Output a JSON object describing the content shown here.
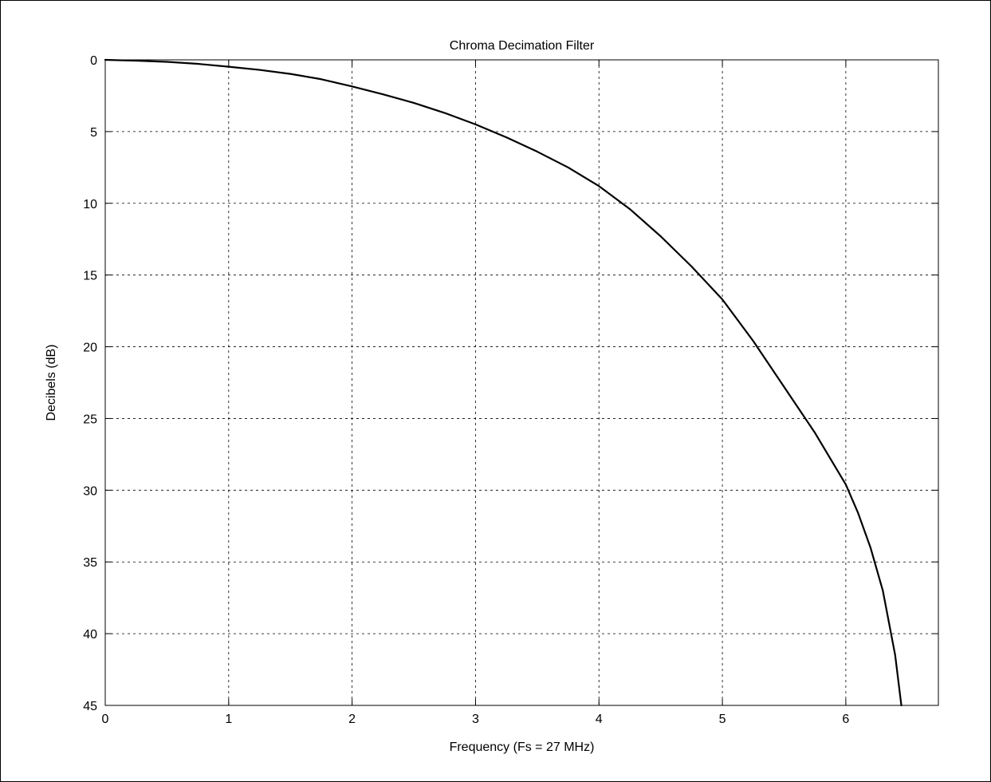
{
  "chart_data": {
    "type": "line",
    "title": "Chroma Decimation Filter",
    "xlabel": "Frequency (Fs = 27 MHz)",
    "ylabel": "Decibels (dB)",
    "xlim": [
      0,
      6.75
    ],
    "ylim": [
      0,
      45
    ],
    "y_axis_inverted": true,
    "x_ticks": [
      "0",
      "1",
      "2",
      "3",
      "4",
      "5",
      "6"
    ],
    "y_ticks": [
      "0",
      "5",
      "10",
      "15",
      "20",
      "25",
      "30",
      "35",
      "40",
      "45"
    ],
    "grid": true,
    "grid_style": "dashed",
    "line_color": "#000000",
    "series": [
      {
        "x": [
          0,
          0.25,
          0.5,
          0.75,
          1.0,
          1.25,
          1.5,
          1.75,
          2.0,
          2.25,
          2.5,
          2.75,
          3.0,
          3.25,
          3.5,
          3.75,
          4.0,
          4.25,
          4.5,
          4.75,
          5.0,
          5.25,
          5.5,
          5.75,
          6.0,
          6.1,
          6.2,
          6.3,
          6.4,
          6.45
        ],
        "values": [
          0,
          0.06,
          0.14,
          0.28,
          0.48,
          0.7,
          0.98,
          1.35,
          1.85,
          2.4,
          3.0,
          3.7,
          4.5,
          5.4,
          6.4,
          7.5,
          8.8,
          10.4,
          12.3,
          14.4,
          16.7,
          19.6,
          22.8,
          26.0,
          29.6,
          31.6,
          34.0,
          37.0,
          41.5,
          45.0
        ]
      }
    ]
  }
}
